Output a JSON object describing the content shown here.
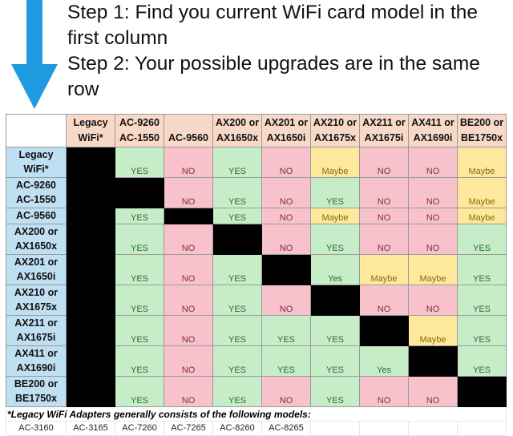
{
  "instructions": [
    "Step 1: Find you current WiFi card model in the",
    "first column",
    "Step 2: Your possible upgrades are in the same",
    "row"
  ],
  "colors": {
    "arrow": "#1e9be0",
    "yes": "#c7edc8",
    "no": "#f7c2cb",
    "maybe": "#fde89c",
    "header": "#f8d9c8",
    "row_header": "#bfdff2",
    "na": "#000000"
  },
  "columns": [
    [
      "Legacy",
      "WiFi*"
    ],
    [
      "AC-9260",
      "AC-1550"
    ],
    [
      "",
      "AC-9560"
    ],
    [
      "AX200 or",
      "AX1650x"
    ],
    [
      "AX201 or",
      "AX1650i"
    ],
    [
      "AX210 or",
      "AX1675x"
    ],
    [
      "AX211 or",
      "AX1675i"
    ],
    [
      "AX411 or",
      "AX1690i"
    ],
    [
      "BE200 or",
      "BE1750x"
    ]
  ],
  "rows": [
    {
      "label": [
        "Legacy",
        "WiFi*"
      ],
      "cells": [
        null,
        "YES",
        "NO",
        "YES",
        "NO",
        "Maybe",
        "NO",
        "NO",
        "Maybe"
      ]
    },
    {
      "label": [
        "AC-9260",
        "AC-1550"
      ],
      "cells": [
        null,
        null,
        "NO",
        "YES",
        "NO",
        "YES",
        "NO",
        "NO",
        "Maybe"
      ]
    },
    {
      "label": [
        "AC-9560"
      ],
      "cells": [
        null,
        "YES",
        null,
        "YES",
        "NO",
        "Maybe",
        "NO",
        "NO",
        "Maybe"
      ]
    },
    {
      "label": [
        "AX200 or",
        "AX1650x"
      ],
      "cells": [
        null,
        "YES",
        "NO",
        null,
        "NO",
        "YES",
        "NO",
        "NO",
        "YES"
      ]
    },
    {
      "label": [
        "AX201 or",
        "AX1650i"
      ],
      "cells": [
        null,
        "YES",
        "NO",
        "YES",
        null,
        "Yes",
        "Maybe",
        "Maybe",
        "YES"
      ]
    },
    {
      "label": [
        "AX210 or",
        "AX1675x"
      ],
      "cells": [
        null,
        "YES",
        "NO",
        "YES",
        "NO",
        null,
        "NO",
        "NO",
        "YES"
      ]
    },
    {
      "label": [
        "AX211 or",
        "AX1675i"
      ],
      "cells": [
        null,
        "YES",
        "NO",
        "YES",
        "YES",
        "YES",
        null,
        "Maybe",
        "YES"
      ]
    },
    {
      "label": [
        "AX411 or",
        "AX1690i"
      ],
      "cells": [
        null,
        "YES",
        "NO",
        "YES",
        "YES",
        "YES",
        "Yes",
        null,
        "YES"
      ]
    },
    {
      "label": [
        "BE200 or",
        "BE1750x"
      ],
      "cells": [
        null,
        "YES",
        "NO",
        "YES",
        "NO",
        "YES",
        "NO",
        "NO",
        null
      ]
    }
  ],
  "footnote": "*Legacy WiFi Adapters generally consists of the following models:",
  "legacy_models": [
    "AC-3160",
    "AC-3165",
    "AC-7260",
    "AC-7265",
    "AC-8260",
    "AC-8265"
  ]
}
